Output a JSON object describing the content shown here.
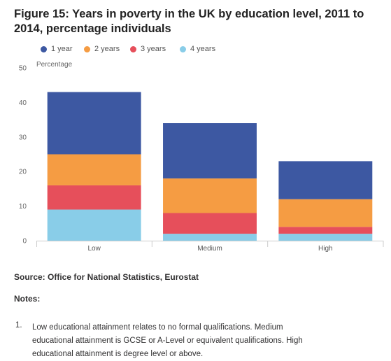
{
  "figure": {
    "title": "Figure 15: Years in poverty in the UK by education level, 2011 to 2014, percentage individuals"
  },
  "chart_data": {
    "type": "bar",
    "stacked": true,
    "categories": [
      "Low",
      "Medium",
      "High"
    ],
    "series": [
      {
        "name": "4 years",
        "values": [
          9,
          2,
          2
        ],
        "color": "#89cde8"
      },
      {
        "name": "3 years",
        "values": [
          7,
          6,
          2
        ],
        "color": "#e64f5b"
      },
      {
        "name": "2 years",
        "values": [
          9,
          10,
          8
        ],
        "color": "#f59c43"
      },
      {
        "name": "1 year",
        "values": [
          18,
          16,
          11
        ],
        "color": "#3d58a2"
      }
    ],
    "legend_order": [
      "1 year",
      "2 years",
      "3 years",
      "4 years"
    ],
    "legend_position": "top-left",
    "ylabel": "Percentage",
    "xlabel": "",
    "ylim": [
      0,
      50
    ],
    "yticks": [
      0,
      10,
      20,
      30,
      40,
      50
    ],
    "grid": false
  },
  "source": "Source: Office for National Statistics, Eurostat",
  "notes": {
    "heading": "Notes:",
    "items": [
      {
        "number": "1.",
        "text": "Low educational attainment relates to no formal qualifications. Medium educational attainment is GCSE or A-Level or equivalent qualifications. High educational attainment is degree level or above."
      }
    ]
  }
}
